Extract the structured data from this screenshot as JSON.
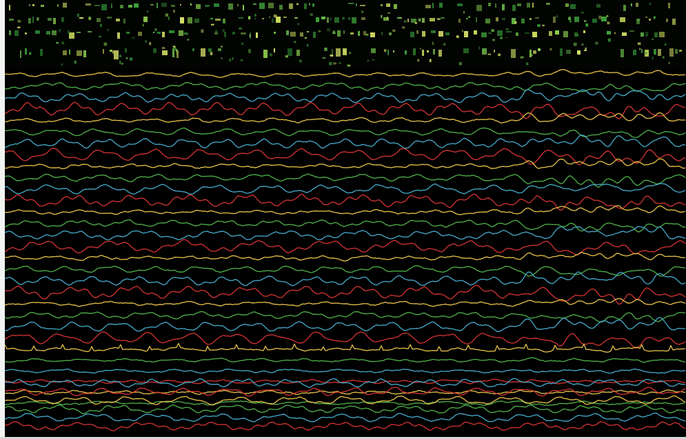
{
  "title": "",
  "header": {
    "row_count": 4,
    "block_colors": [
      "#3fa63b",
      "#8fd14f",
      "#d9e26a",
      "#6cbf4a",
      "#c8d85a",
      "#2e8a34"
    ]
  },
  "traces": {
    "color_cycle": [
      "#e7c14a",
      "#4fb04a",
      "#47a9c9",
      "#d43434"
    ],
    "channel_count": 36,
    "event_marks": [
      760,
      808,
      835,
      862,
      890,
      918,
      950
    ]
  },
  "colors": {
    "background": "#000000",
    "frame": "#f2f4f2",
    "yellow": "#e7c14a",
    "green": "#4fb04a",
    "cyan": "#47a9c9",
    "red": "#d43434"
  }
}
